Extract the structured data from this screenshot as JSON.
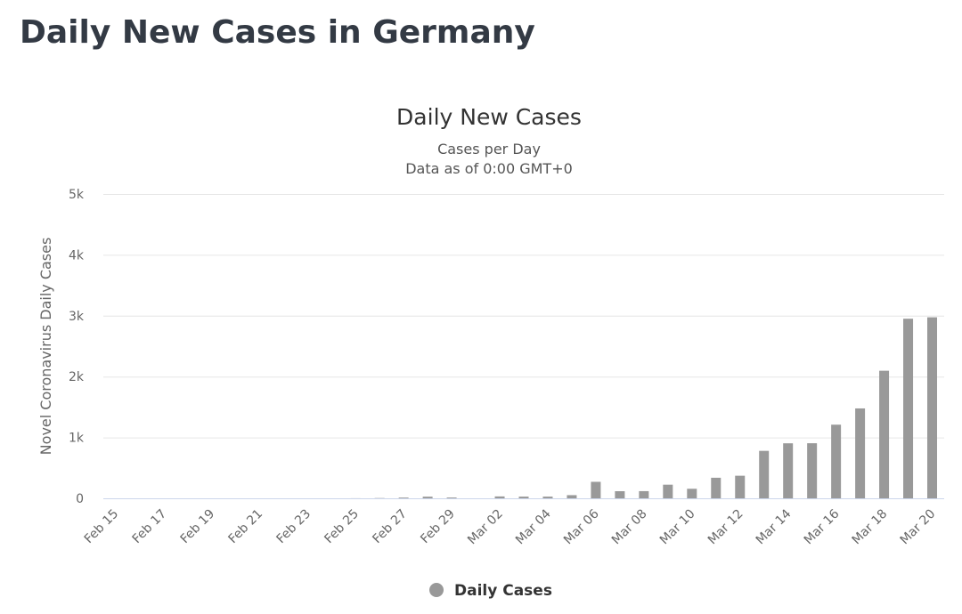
{
  "page": {
    "title": "Daily New Cases in Germany"
  },
  "chart_data": {
    "type": "bar",
    "title": "Daily New Cases",
    "subtitle_lines": [
      "Cases per Day",
      "Data as of 0:00 GMT+0"
    ],
    "ylabel": "Novel Coronavirus Daily Cases",
    "xlabel": "",
    "ylim": [
      0,
      5000
    ],
    "yticks": [
      0,
      1000,
      2000,
      3000,
      4000,
      5000
    ],
    "ytick_labels": [
      "0",
      "1k",
      "2k",
      "3k",
      "4k",
      "5k"
    ],
    "grid": true,
    "legend_position": "bottom-center",
    "bar_color": "#999999",
    "categories": [
      "Feb 15",
      "Feb 16",
      "Feb 17",
      "Feb 18",
      "Feb 19",
      "Feb 20",
      "Feb 21",
      "Feb 22",
      "Feb 23",
      "Feb 24",
      "Feb 25",
      "Feb 26",
      "Feb 27",
      "Feb 28",
      "Feb 29",
      "Mar 01",
      "Mar 02",
      "Mar 03",
      "Mar 04",
      "Mar 05",
      "Mar 06",
      "Mar 07",
      "Mar 08",
      "Mar 09",
      "Mar 10",
      "Mar 11",
      "Mar 12",
      "Mar 13",
      "Mar 14",
      "Mar 15",
      "Mar 16",
      "Mar 17",
      "Mar 18",
      "Mar 19",
      "Mar 20"
    ],
    "tick_labels_shown": [
      "Feb 15",
      "Feb 17",
      "Feb 19",
      "Feb 21",
      "Feb 23",
      "Feb 25",
      "Feb 27",
      "Feb 29",
      "Mar 02",
      "Mar 04",
      "Mar 06",
      "Mar 08",
      "Mar 10",
      "Mar 12",
      "Mar 14",
      "Mar 16",
      "Mar 18",
      "Mar 20"
    ],
    "series": [
      {
        "name": "Daily Cases",
        "values": [
          0,
          0,
          0,
          0,
          0,
          0,
          0,
          0,
          0,
          0,
          1,
          4,
          12,
          27,
          13,
          0,
          31,
          28,
          28,
          52,
          271,
          117,
          118,
          224,
          157,
          338,
          371,
          780,
          904,
          905,
          1210,
          1477,
          2096,
          2951,
          2974
        ]
      }
    ]
  }
}
